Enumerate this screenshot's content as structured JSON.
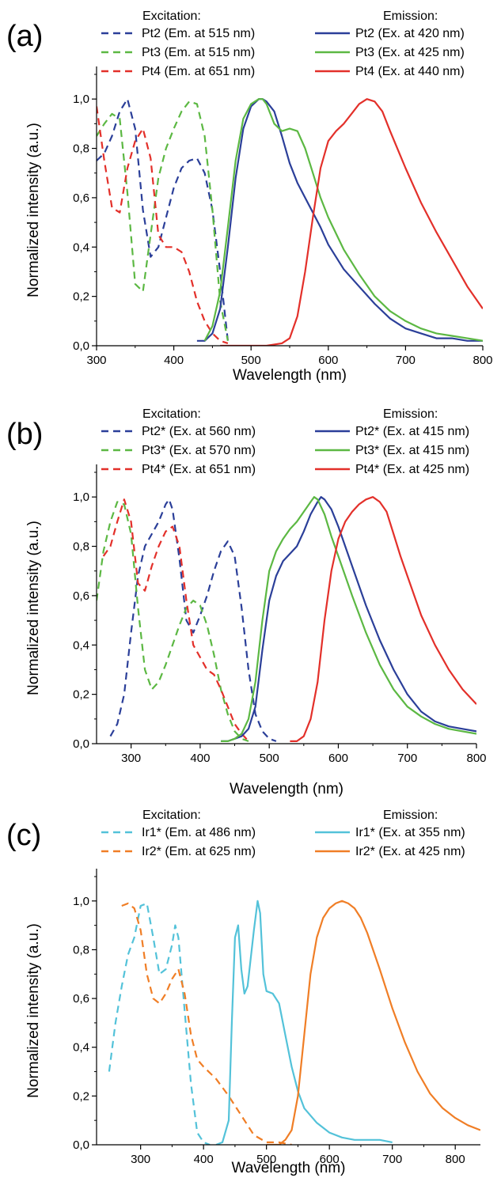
{
  "colors": {
    "blue": "#2b3f99",
    "green": "#5cb843",
    "red": "#e3302a",
    "cyan": "#53c2d9",
    "orange": "#f07e26"
  },
  "chart_data": [
    {
      "type": "line",
      "panel_label": "(a)",
      "xlabel": "Wavelength (nm)",
      "ylabel": "Normalized intensity (a.u.)",
      "xlim": [
        300,
        800
      ],
      "ylim": [
        0,
        1.1
      ],
      "xticks": [
        300,
        400,
        500,
        600,
        700,
        800
      ],
      "yticks": [
        0,
        0.2,
        0.4,
        0.6,
        0.8,
        1.0
      ],
      "ytick_labels": [
        "0,0",
        "0,2",
        "0,4",
        "0,6",
        "0,8",
        "1,0"
      ],
      "legend_headers": {
        "left": "Excitation:",
        "right": "Emission:"
      },
      "series": [
        {
          "name": "Pt2 (Em. at 515 nm)",
          "group": "excitation",
          "color": "blue",
          "dash": true,
          "x": [
            300,
            310,
            320,
            330,
            340,
            350,
            360,
            370,
            380,
            390,
            400,
            410,
            420,
            430,
            440,
            450,
            460,
            470
          ],
          "y": [
            0.75,
            0.78,
            0.85,
            0.95,
            1.0,
            0.88,
            0.55,
            0.36,
            0.4,
            0.52,
            0.64,
            0.72,
            0.75,
            0.76,
            0.7,
            0.55,
            0.3,
            0.02
          ]
        },
        {
          "name": "Pt3 (Em. at 515 nm)",
          "group": "excitation",
          "color": "green",
          "dash": true,
          "x": [
            300,
            310,
            320,
            330,
            340,
            350,
            360,
            370,
            380,
            390,
            400,
            410,
            420,
            430,
            440,
            450,
            460,
            470
          ],
          "y": [
            0.85,
            0.9,
            0.94,
            0.92,
            0.62,
            0.25,
            0.22,
            0.45,
            0.68,
            0.8,
            0.88,
            0.95,
            0.99,
            0.98,
            0.85,
            0.55,
            0.18,
            0.02
          ]
        },
        {
          "name": "Pt4 (Em. at 651 nm)",
          "group": "excitation",
          "color": "red",
          "dash": true,
          "x": [
            300,
            310,
            320,
            330,
            340,
            350,
            360,
            370,
            380,
            390,
            400,
            410,
            420,
            430,
            440,
            450,
            460,
            470
          ],
          "y": [
            0.97,
            0.75,
            0.56,
            0.54,
            0.72,
            0.83,
            0.88,
            0.76,
            0.45,
            0.4,
            0.4,
            0.38,
            0.3,
            0.18,
            0.1,
            0.05,
            0.02,
            0.01
          ]
        },
        {
          "name": "Pt2 (Ex. at 420 nm)",
          "group": "emission",
          "color": "blue",
          "dash": false,
          "x": [
            430,
            440,
            450,
            460,
            470,
            480,
            490,
            500,
            510,
            515,
            520,
            530,
            540,
            550,
            560,
            570,
            580,
            590,
            600,
            620,
            640,
            660,
            680,
            700,
            720,
            740,
            760,
            780,
            800
          ],
          "y": [
            0.02,
            0.02,
            0.05,
            0.15,
            0.4,
            0.68,
            0.88,
            0.97,
            1.0,
            1.0,
            0.99,
            0.95,
            0.85,
            0.74,
            0.66,
            0.6,
            0.54,
            0.48,
            0.41,
            0.31,
            0.24,
            0.17,
            0.11,
            0.07,
            0.05,
            0.03,
            0.03,
            0.02,
            0.02
          ]
        },
        {
          "name": "Pt3 (Ex. at 425 nm)",
          "group": "emission",
          "color": "green",
          "dash": false,
          "x": [
            440,
            450,
            460,
            470,
            480,
            490,
            500,
            510,
            515,
            520,
            530,
            540,
            550,
            560,
            570,
            580,
            590,
            600,
            620,
            640,
            660,
            680,
            700,
            720,
            740,
            760,
            780,
            800
          ],
          "y": [
            0.02,
            0.08,
            0.22,
            0.48,
            0.75,
            0.92,
            0.98,
            1.0,
            1.0,
            0.98,
            0.9,
            0.87,
            0.88,
            0.87,
            0.8,
            0.7,
            0.6,
            0.52,
            0.39,
            0.29,
            0.2,
            0.14,
            0.1,
            0.07,
            0.05,
            0.04,
            0.03,
            0.02
          ]
        },
        {
          "name": "Pt4 (Ex. at 440 nm)",
          "group": "emission",
          "color": "red",
          "dash": false,
          "x": [
            460,
            480,
            500,
            520,
            540,
            550,
            560,
            570,
            580,
            590,
            600,
            610,
            620,
            630,
            640,
            650,
            660,
            670,
            680,
            700,
            720,
            740,
            760,
            780,
            800
          ],
          "y": [
            0.0,
            0.0,
            0.0,
            0.0,
            0.01,
            0.03,
            0.12,
            0.3,
            0.52,
            0.72,
            0.83,
            0.87,
            0.9,
            0.94,
            0.98,
            1.0,
            0.99,
            0.95,
            0.87,
            0.72,
            0.58,
            0.46,
            0.35,
            0.24,
            0.15
          ]
        }
      ]
    },
    {
      "type": "line",
      "panel_label": "(b)",
      "xlabel": "Wavelength (nm)",
      "ylabel": "Normalized intensity (a.u.)",
      "xlim": [
        250,
        800
      ],
      "ylim": [
        0,
        1.1
      ],
      "xticks": [
        300,
        400,
        500,
        600,
        700,
        800
      ],
      "yticks": [
        0,
        0.2,
        0.4,
        0.6,
        0.8,
        1.0
      ],
      "ytick_labels": [
        "0,0",
        "0,2",
        "0,4",
        "0,6",
        "0,8",
        "1,0"
      ],
      "legend_headers": {
        "left": "Excitation:",
        "right": "Emission:"
      },
      "series": [
        {
          "name": "Pt2* (Ex. at 560 nm)",
          "group": "excitation",
          "color": "blue",
          "dash": true,
          "x": [
            270,
            280,
            290,
            300,
            310,
            320,
            330,
            340,
            350,
            355,
            360,
            370,
            380,
            390,
            400,
            410,
            420,
            430,
            440,
            450,
            460,
            470,
            480,
            490,
            500,
            510
          ],
          "y": [
            0.03,
            0.08,
            0.2,
            0.45,
            0.68,
            0.8,
            0.85,
            0.9,
            0.97,
            0.99,
            0.95,
            0.75,
            0.5,
            0.45,
            0.52,
            0.6,
            0.7,
            0.78,
            0.82,
            0.76,
            0.55,
            0.3,
            0.12,
            0.05,
            0.02,
            0.01
          ]
        },
        {
          "name": "Pt3* (Ex. at 570 nm)",
          "group": "excitation",
          "color": "green",
          "dash": true,
          "x": [
            250,
            260,
            270,
            280,
            290,
            300,
            310,
            320,
            330,
            340,
            350,
            360,
            370,
            380,
            390,
            400,
            410,
            420,
            430,
            440,
            450,
            460,
            470
          ],
          "y": [
            0.58,
            0.78,
            0.9,
            0.98,
            0.97,
            0.85,
            0.55,
            0.3,
            0.22,
            0.25,
            0.32,
            0.4,
            0.48,
            0.55,
            0.58,
            0.56,
            0.48,
            0.36,
            0.22,
            0.12,
            0.05,
            0.02,
            0.01
          ]
        },
        {
          "name": "Pt4* (Ex. at 651 nm)",
          "group": "excitation",
          "color": "red",
          "dash": true,
          "x": [
            260,
            270,
            280,
            290,
            300,
            310,
            320,
            330,
            340,
            350,
            360,
            370,
            380,
            390,
            400,
            410,
            420,
            430,
            440,
            450,
            460,
            470
          ],
          "y": [
            0.76,
            0.8,
            0.9,
            0.99,
            0.9,
            0.65,
            0.62,
            0.72,
            0.8,
            0.86,
            0.88,
            0.8,
            0.58,
            0.4,
            0.35,
            0.3,
            0.28,
            0.22,
            0.15,
            0.08,
            0.04,
            0.01
          ]
        },
        {
          "name": "Pt2* (Ex. at 415 nm)",
          "group": "emission",
          "color": "blue",
          "dash": false,
          "x": [
            430,
            440,
            450,
            460,
            470,
            480,
            490,
            500,
            510,
            520,
            530,
            540,
            550,
            560,
            570,
            575,
            580,
            590,
            600,
            620,
            640,
            660,
            680,
            700,
            720,
            740,
            760,
            780,
            800
          ],
          "y": [
            0.01,
            0.01,
            0.02,
            0.03,
            0.06,
            0.15,
            0.38,
            0.58,
            0.68,
            0.74,
            0.77,
            0.8,
            0.86,
            0.93,
            0.98,
            1.0,
            0.99,
            0.95,
            0.88,
            0.72,
            0.56,
            0.42,
            0.3,
            0.2,
            0.13,
            0.09,
            0.07,
            0.06,
            0.05
          ]
        },
        {
          "name": "Pt3* (Ex. at 415 nm)",
          "group": "emission",
          "color": "green",
          "dash": false,
          "x": [
            430,
            440,
            450,
            460,
            470,
            480,
            490,
            500,
            510,
            520,
            530,
            540,
            550,
            560,
            565,
            570,
            580,
            590,
            600,
            620,
            640,
            660,
            680,
            700,
            720,
            740,
            760,
            780,
            800
          ],
          "y": [
            0.01,
            0.01,
            0.02,
            0.04,
            0.1,
            0.25,
            0.5,
            0.7,
            0.78,
            0.83,
            0.87,
            0.9,
            0.94,
            0.98,
            1.0,
            0.99,
            0.93,
            0.84,
            0.76,
            0.6,
            0.45,
            0.32,
            0.22,
            0.15,
            0.11,
            0.08,
            0.06,
            0.05,
            0.04
          ]
        },
        {
          "name": "Pt4* (Ex. at 425 nm)",
          "group": "emission",
          "color": "red",
          "dash": false,
          "x": [
            530,
            540,
            550,
            560,
            570,
            580,
            590,
            600,
            610,
            620,
            630,
            640,
            650,
            660,
            670,
            680,
            690,
            700,
            720,
            740,
            760,
            780,
            800
          ],
          "y": [
            0.01,
            0.01,
            0.03,
            0.1,
            0.25,
            0.5,
            0.7,
            0.83,
            0.9,
            0.94,
            0.97,
            0.99,
            1.0,
            0.98,
            0.94,
            0.85,
            0.76,
            0.68,
            0.52,
            0.4,
            0.3,
            0.22,
            0.16
          ]
        }
      ]
    },
    {
      "type": "line",
      "panel_label": "(c)",
      "xlabel": "Wavelength (nm)",
      "ylabel": "Normalized intensity (a.u.)",
      "xlim": [
        230,
        840
      ],
      "ylim": [
        0,
        1.1
      ],
      "xticks": [
        300,
        400,
        500,
        600,
        700,
        800
      ],
      "yticks": [
        0,
        0.2,
        0.4,
        0.6,
        0.8,
        1.0
      ],
      "ytick_labels": [
        "0,0",
        "0,2",
        "0,4",
        "0,6",
        "0,8",
        "1,0"
      ],
      "legend_headers": {
        "left": "Excitation:",
        "right": "Emission:"
      },
      "series": [
        {
          "name": "Ir1* (Em. at 486 nm)",
          "group": "excitation",
          "color": "cyan",
          "dash": true,
          "x": [
            250,
            260,
            270,
            280,
            290,
            300,
            310,
            320,
            330,
            340,
            350,
            355,
            360,
            370,
            380,
            390,
            400,
            410
          ],
          "y": [
            0.3,
            0.5,
            0.65,
            0.78,
            0.85,
            0.98,
            0.99,
            0.85,
            0.7,
            0.72,
            0.82,
            0.9,
            0.85,
            0.55,
            0.25,
            0.05,
            0.01,
            0.0
          ]
        },
        {
          "name": "Ir2* (Em. at 625 nm)",
          "group": "excitation",
          "color": "orange",
          "dash": true,
          "x": [
            270,
            280,
            290,
            300,
            310,
            320,
            330,
            340,
            350,
            360,
            370,
            380,
            390,
            400,
            420,
            440,
            460,
            480,
            500,
            520,
            540
          ],
          "y": [
            0.98,
            0.99,
            0.97,
            0.88,
            0.7,
            0.6,
            0.58,
            0.62,
            0.68,
            0.72,
            0.62,
            0.45,
            0.35,
            0.32,
            0.27,
            0.2,
            0.12,
            0.04,
            0.01,
            0.01,
            0.0
          ]
        },
        {
          "name": "Ir1* (Ex. at 355 nm)",
          "group": "emission",
          "color": "cyan",
          "dash": false,
          "x": [
            420,
            430,
            440,
            445,
            450,
            455,
            460,
            465,
            470,
            480,
            486,
            490,
            495,
            500,
            510,
            520,
            530,
            540,
            550,
            560,
            580,
            600,
            620,
            640,
            660,
            680,
            700
          ],
          "y": [
            0.0,
            0.01,
            0.1,
            0.5,
            0.85,
            0.9,
            0.72,
            0.62,
            0.65,
            0.88,
            1.0,
            0.95,
            0.7,
            0.63,
            0.62,
            0.58,
            0.45,
            0.32,
            0.22,
            0.15,
            0.09,
            0.05,
            0.03,
            0.02,
            0.02,
            0.02,
            0.01
          ]
        },
        {
          "name": "Ir2* (Ex. at 425 nm)",
          "group": "emission",
          "color": "orange",
          "dash": false,
          "x": [
            500,
            520,
            530,
            540,
            550,
            560,
            570,
            580,
            590,
            600,
            610,
            620,
            630,
            640,
            650,
            660,
            680,
            700,
            720,
            740,
            760,
            780,
            800,
            820,
            840
          ],
          "y": [
            0.0,
            0.0,
            0.02,
            0.06,
            0.2,
            0.45,
            0.7,
            0.85,
            0.93,
            0.97,
            0.99,
            1.0,
            0.99,
            0.97,
            0.93,
            0.87,
            0.72,
            0.56,
            0.42,
            0.3,
            0.21,
            0.15,
            0.11,
            0.08,
            0.06
          ]
        }
      ]
    }
  ]
}
